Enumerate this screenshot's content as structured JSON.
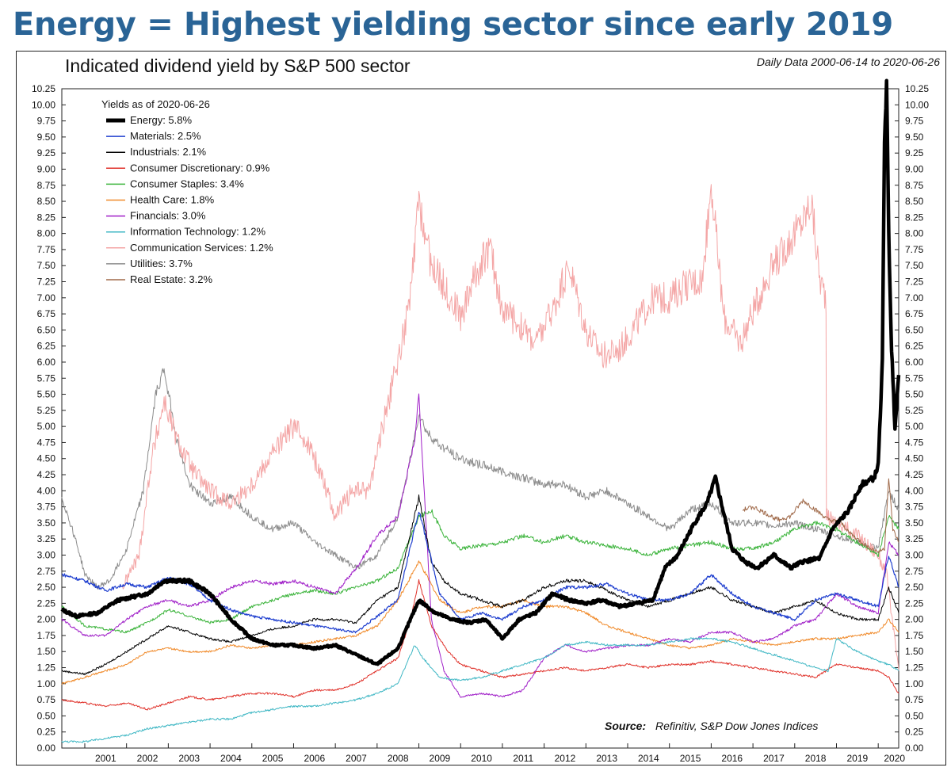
{
  "header": {
    "headline": "Energy = Highest yielding sector since early 2019"
  },
  "chart_data": {
    "type": "line",
    "title": "Indicated dividend yield by S&P 500 sector",
    "subtitle": "Daily Data 2000-06-14 to 2020-06-26",
    "xlabel": "",
    "ylabel": "",
    "xlim": [
      2000.45,
      2020.49
    ],
    "ylim": [
      0,
      10.25
    ],
    "y_ticks": [
      0.0,
      0.25,
      0.5,
      0.75,
      1.0,
      1.25,
      1.5,
      1.75,
      2.0,
      2.25,
      2.5,
      2.75,
      3.0,
      3.25,
      3.5,
      3.75,
      4.0,
      4.25,
      4.5,
      4.75,
      5.0,
      5.25,
      5.5,
      5.75,
      6.0,
      6.25,
      6.5,
      6.75,
      7.0,
      7.25,
      7.5,
      7.75,
      8.0,
      8.25,
      8.5,
      8.75,
      9.0,
      9.25,
      9.5,
      9.75,
      10.0,
      10.25
    ],
    "y_tick_labels": [
      "0.00",
      "0.25",
      "0.50",
      "0.75",
      "1.00",
      "1.25",
      "1.50",
      "1.75",
      "2.00",
      "2.25",
      "2.50",
      "2.75",
      "3.00",
      "3.25",
      "3.50",
      "3.75",
      "4.00",
      "4.25",
      "4.50",
      "4.75",
      "5.00",
      "5.25",
      "5.50",
      "5.75",
      "6.00",
      "6.25",
      "6.50",
      "6.75",
      "7.00",
      "7.25",
      "7.50",
      "7.75",
      "8.00",
      "8.25",
      "8.50",
      "8.75",
      "9.00",
      "9.25",
      "9.50",
      "9.75",
      "10.00",
      "10.25"
    ],
    "x_tick_labels": [
      "2001",
      "2002",
      "2003",
      "2004",
      "2005",
      "2006",
      "2007",
      "2008",
      "2009",
      "2010",
      "2011",
      "2012",
      "2013",
      "2014",
      "2015",
      "2016",
      "2017",
      "2018",
      "2019",
      "2020"
    ],
    "grid": false,
    "legend": {
      "title": "Yields as of 2020-06-26",
      "placement": "top-left"
    },
    "source_label": "Source:",
    "source_text": "Refinitiv, S&P Dow Jones Indices",
    "series": [
      {
        "name": "Energy: 5.8%",
        "color": "#000000",
        "width": 4.5,
        "legend_width": 5,
        "x": [
          2000.45,
          2000.8,
          2001.3,
          2001.8,
          2002.5,
          2002.9,
          2003.5,
          2004.0,
          2004.5,
          2005.0,
          2005.5,
          2006.0,
          2006.5,
          2007.0,
          2007.5,
          2008.0,
          2008.5,
          2008.8,
          2009.0,
          2009.4,
          2009.8,
          2010.2,
          2010.6,
          2011.0,
          2011.4,
          2011.8,
          2012.2,
          2012.6,
          2013.0,
          2013.4,
          2013.8,
          2014.2,
          2014.6,
          2014.9,
          2015.2,
          2015.6,
          2015.9,
          2016.1,
          2016.5,
          2016.8,
          2017.1,
          2017.5,
          2017.9,
          2018.2,
          2018.6,
          2018.9,
          2019.3,
          2019.6,
          2019.9,
          2020.0,
          2020.1,
          2020.15,
          2020.2,
          2020.25,
          2020.32,
          2020.4,
          2020.49
        ],
        "y": [
          2.15,
          2.05,
          2.1,
          2.3,
          2.4,
          2.6,
          2.6,
          2.4,
          2.0,
          1.7,
          1.6,
          1.6,
          1.55,
          1.6,
          1.45,
          1.3,
          1.55,
          2.0,
          2.3,
          2.1,
          2.0,
          1.95,
          2.0,
          1.7,
          2.0,
          2.1,
          2.4,
          2.3,
          2.25,
          2.3,
          2.2,
          2.25,
          2.3,
          2.8,
          3.0,
          3.5,
          3.8,
          4.2,
          3.1,
          2.9,
          2.8,
          3.0,
          2.8,
          2.9,
          2.95,
          3.4,
          3.7,
          4.1,
          4.2,
          4.4,
          6.0,
          9.5,
          10.3,
          8.0,
          6.2,
          5.0,
          5.8
        ]
      },
      {
        "name": "Materials: 2.5%",
        "color": "#1f3fcf",
        "width": 1.2,
        "legend_width": 1.5,
        "x": [
          2000.45,
          2001.0,
          2001.5,
          2002.0,
          2002.5,
          2003.0,
          2003.5,
          2004.0,
          2004.5,
          2005.0,
          2005.5,
          2006.0,
          2006.5,
          2007.0,
          2007.5,
          2008.0,
          2008.5,
          2009.0,
          2009.5,
          2010.0,
          2010.5,
          2011.0,
          2011.5,
          2012.0,
          2012.5,
          2013.0,
          2013.5,
          2014.0,
          2014.5,
          2015.0,
          2015.5,
          2016.0,
          2016.5,
          2017.0,
          2017.5,
          2018.0,
          2018.5,
          2019.0,
          2019.5,
          2020.0,
          2020.25,
          2020.49
        ],
        "y": [
          2.7,
          2.6,
          2.45,
          2.55,
          2.5,
          2.65,
          2.55,
          2.3,
          2.15,
          2.05,
          2.0,
          1.95,
          1.9,
          1.85,
          1.8,
          2.05,
          2.3,
          3.7,
          2.4,
          2.0,
          2.1,
          2.0,
          2.2,
          2.3,
          2.5,
          2.5,
          2.55,
          2.4,
          2.3,
          2.3,
          2.4,
          2.7,
          2.4,
          2.2,
          2.1,
          2.0,
          2.3,
          2.4,
          2.3,
          2.2,
          3.0,
          2.5
        ]
      },
      {
        "name": "Industrials: 2.1%",
        "color": "#000000",
        "width": 1.0,
        "legend_width": 1.5,
        "x": [
          2000.45,
          2001.0,
          2001.5,
          2002.0,
          2002.5,
          2003.0,
          2003.5,
          2004.0,
          2004.5,
          2005.0,
          2005.5,
          2006.0,
          2006.5,
          2007.0,
          2007.5,
          2008.0,
          2008.5,
          2009.0,
          2009.3,
          2009.6,
          2010.0,
          2010.5,
          2011.0,
          2011.5,
          2012.0,
          2012.5,
          2013.0,
          2013.5,
          2014.0,
          2014.5,
          2015.0,
          2015.5,
          2016.0,
          2016.5,
          2017.0,
          2017.5,
          2018.0,
          2018.5,
          2019.0,
          2019.5,
          2020.0,
          2020.25,
          2020.49
        ],
        "y": [
          1.2,
          1.15,
          1.3,
          1.5,
          1.7,
          1.9,
          1.8,
          1.7,
          1.65,
          1.75,
          1.85,
          1.9,
          2.0,
          2.0,
          1.95,
          2.3,
          2.5,
          3.9,
          2.9,
          2.6,
          2.4,
          2.3,
          2.2,
          2.3,
          2.5,
          2.6,
          2.6,
          2.45,
          2.3,
          2.2,
          2.3,
          2.4,
          2.5,
          2.3,
          2.2,
          2.1,
          2.2,
          2.3,
          2.1,
          2.0,
          2.0,
          2.5,
          2.1
        ]
      },
      {
        "name": "Consumer Discretionary: 0.9%",
        "color": "#e0322b",
        "width": 1.0,
        "legend_width": 1.5,
        "x": [
          2000.45,
          2001.0,
          2001.5,
          2002.0,
          2002.5,
          2003.0,
          2003.5,
          2004.0,
          2004.5,
          2005.0,
          2005.5,
          2006.0,
          2006.5,
          2007.0,
          2007.5,
          2008.0,
          2008.5,
          2008.8,
          2009.0,
          2009.3,
          2009.7,
          2010.0,
          2010.5,
          2011.0,
          2011.5,
          2012.0,
          2012.5,
          2013.0,
          2013.5,
          2014.0,
          2014.5,
          2015.0,
          2015.5,
          2016.0,
          2016.5,
          2017.0,
          2017.5,
          2018.0,
          2018.5,
          2019.0,
          2019.5,
          2020.0,
          2020.25,
          2020.49
        ],
        "y": [
          0.75,
          0.7,
          0.65,
          0.7,
          0.6,
          0.7,
          0.8,
          0.75,
          0.8,
          0.85,
          0.85,
          0.8,
          0.9,
          0.9,
          1.0,
          1.2,
          1.4,
          2.0,
          2.6,
          1.9,
          1.5,
          1.3,
          1.2,
          1.1,
          1.15,
          1.2,
          1.25,
          1.2,
          1.25,
          1.3,
          1.25,
          1.3,
          1.3,
          1.35,
          1.3,
          1.25,
          1.2,
          1.15,
          1.1,
          1.3,
          1.25,
          1.2,
          1.1,
          0.85
        ]
      },
      {
        "name": "Consumer Staples: 3.4%",
        "color": "#3cb43c",
        "width": 1.0,
        "legend_width": 1.5,
        "x": [
          2000.45,
          2001.0,
          2001.5,
          2002.0,
          2002.5,
          2003.0,
          2003.5,
          2004.0,
          2004.5,
          2005.0,
          2005.5,
          2006.0,
          2006.5,
          2007.0,
          2007.5,
          2008.0,
          2008.5,
          2009.0,
          2009.3,
          2009.6,
          2010.0,
          2010.5,
          2011.0,
          2011.5,
          2012.0,
          2012.5,
          2013.0,
          2013.5,
          2014.0,
          2014.5,
          2015.0,
          2015.5,
          2016.0,
          2016.5,
          2017.0,
          2017.5,
          2018.0,
          2018.5,
          2019.0,
          2019.5,
          2020.0,
          2020.25,
          2020.49
        ],
        "y": [
          2.2,
          1.9,
          1.85,
          1.8,
          1.95,
          2.15,
          2.05,
          1.95,
          2.0,
          2.2,
          2.3,
          2.4,
          2.45,
          2.4,
          2.5,
          2.6,
          2.8,
          3.6,
          3.7,
          3.3,
          3.1,
          3.15,
          3.2,
          3.3,
          3.2,
          3.3,
          3.2,
          3.15,
          3.1,
          3.0,
          3.1,
          3.15,
          3.2,
          3.1,
          3.1,
          3.2,
          3.4,
          3.5,
          3.4,
          3.2,
          3.0,
          3.6,
          3.4
        ]
      },
      {
        "name": "Health Care: 1.8%",
        "color": "#f08a2a",
        "width": 1.0,
        "legend_width": 1.5,
        "x": [
          2000.45,
          2001.0,
          2001.5,
          2002.0,
          2002.5,
          2003.0,
          2003.5,
          2004.0,
          2004.5,
          2005.0,
          2005.5,
          2006.0,
          2006.5,
          2007.0,
          2007.5,
          2008.0,
          2008.5,
          2009.0,
          2009.5,
          2010.0,
          2010.5,
          2011.0,
          2011.5,
          2012.0,
          2012.5,
          2013.0,
          2013.5,
          2014.0,
          2014.5,
          2015.0,
          2015.5,
          2016.0,
          2016.5,
          2017.0,
          2017.5,
          2018.0,
          2018.5,
          2019.0,
          2019.5,
          2020.0,
          2020.25,
          2020.49
        ],
        "y": [
          1.0,
          1.1,
          1.2,
          1.3,
          1.5,
          1.55,
          1.5,
          1.5,
          1.6,
          1.55,
          1.6,
          1.6,
          1.65,
          1.7,
          1.75,
          1.9,
          2.3,
          2.9,
          2.3,
          2.1,
          2.2,
          2.2,
          2.3,
          2.2,
          2.2,
          2.1,
          1.9,
          1.8,
          1.7,
          1.6,
          1.55,
          1.6,
          1.7,
          1.65,
          1.6,
          1.65,
          1.7,
          1.7,
          1.75,
          1.8,
          2.0,
          1.8
        ]
      },
      {
        "name": "Financials: 3.0%",
        "color": "#a020c8",
        "width": 1.0,
        "legend_width": 1.5,
        "x": [
          2000.45,
          2001.0,
          2001.5,
          2002.0,
          2002.5,
          2003.0,
          2003.5,
          2004.0,
          2004.5,
          2005.0,
          2005.5,
          2006.0,
          2006.5,
          2007.0,
          2007.5,
          2008.0,
          2008.5,
          2008.9,
          2009.0,
          2009.3,
          2009.6,
          2010.0,
          2010.5,
          2011.0,
          2011.5,
          2012.0,
          2012.5,
          2013.0,
          2013.5,
          2014.0,
          2014.5,
          2015.0,
          2015.5,
          2016.0,
          2016.5,
          2017.0,
          2017.5,
          2018.0,
          2018.5,
          2019.0,
          2019.5,
          2020.0,
          2020.25,
          2020.49
        ],
        "y": [
          2.0,
          1.75,
          1.75,
          2.0,
          2.2,
          2.3,
          2.2,
          2.3,
          2.5,
          2.6,
          2.55,
          2.6,
          2.5,
          2.4,
          2.8,
          3.3,
          3.6,
          4.8,
          5.5,
          2.0,
          1.2,
          0.8,
          0.85,
          0.8,
          0.9,
          1.4,
          1.6,
          1.5,
          1.55,
          1.6,
          1.6,
          1.7,
          1.65,
          1.8,
          1.8,
          1.65,
          1.7,
          1.9,
          2.0,
          2.4,
          2.2,
          2.1,
          3.2,
          3.0
        ]
      },
      {
        "name": "Information Technology: 1.2%",
        "color": "#3fb7c4",
        "width": 1.0,
        "legend_width": 1.5,
        "x": [
          2000.45,
          2001.0,
          2001.5,
          2002.0,
          2002.5,
          2003.0,
          2003.5,
          2004.0,
          2004.5,
          2005.0,
          2005.5,
          2006.0,
          2006.5,
          2007.0,
          2007.5,
          2008.0,
          2008.5,
          2008.9,
          2009.1,
          2009.5,
          2010.0,
          2010.5,
          2011.0,
          2011.5,
          2012.0,
          2012.5,
          2013.0,
          2013.5,
          2014.0,
          2014.5,
          2015.0,
          2015.5,
          2016.0,
          2016.5,
          2017.0,
          2017.5,
          2018.0,
          2018.5,
          2018.8,
          2019.0,
          2019.5,
          2020.0,
          2020.25,
          2020.49
        ],
        "y": [
          0.1,
          0.1,
          0.15,
          0.2,
          0.3,
          0.35,
          0.4,
          0.45,
          0.45,
          0.55,
          0.6,
          0.65,
          0.65,
          0.7,
          0.75,
          0.85,
          1.0,
          1.6,
          1.4,
          1.1,
          1.05,
          1.1,
          1.2,
          1.3,
          1.4,
          1.6,
          1.65,
          1.6,
          1.6,
          1.6,
          1.65,
          1.7,
          1.7,
          1.65,
          1.55,
          1.45,
          1.35,
          1.25,
          1.2,
          1.7,
          1.5,
          1.35,
          1.3,
          1.2
        ]
      },
      {
        "name": "Communication Services: 1.2%",
        "color": "#f4a6a6",
        "width": 1.0,
        "legend_width": 1.5,
        "x": [
          2001.9,
          2002.3,
          2002.6,
          2002.9,
          2003.2,
          2003.6,
          2004.0,
          2004.5,
          2005.0,
          2005.5,
          2006.0,
          2006.3,
          2006.7,
          2007.0,
          2007.4,
          2007.8,
          2008.2,
          2008.5,
          2008.8,
          2009.0,
          2009.3,
          2009.6,
          2010.0,
          2010.3,
          2010.7,
          2011.0,
          2011.4,
          2011.8,
          2012.2,
          2012.6,
          2013.0,
          2013.4,
          2013.8,
          2014.2,
          2014.6,
          2015.0,
          2015.4,
          2015.8,
          2016.0,
          2016.3,
          2016.7,
          2017.0,
          2017.4,
          2017.8,
          2018.2,
          2018.4,
          2018.6,
          2018.75,
          2018.76,
          2019.0,
          2019.5,
          2020.0,
          2020.2,
          2020.49
        ],
        "y": [
          2.5,
          3.0,
          4.5,
          5.4,
          4.8,
          4.3,
          4.0,
          3.8,
          4.1,
          4.6,
          5.0,
          4.8,
          4.2,
          3.6,
          4.0,
          4.0,
          5.2,
          6.0,
          7.0,
          8.5,
          7.5,
          7.2,
          6.7,
          7.3,
          7.8,
          6.8,
          6.6,
          6.3,
          6.8,
          7.5,
          6.5,
          6.1,
          6.2,
          6.6,
          7.0,
          7.0,
          7.2,
          7.3,
          8.8,
          6.7,
          6.3,
          6.8,
          7.4,
          7.8,
          8.2,
          8.5,
          7.3,
          7.0,
          3.6,
          3.5,
          3.3,
          3.0,
          2.7,
          1.2
        ]
      },
      {
        "name": "Utilities: 3.7%",
        "color": "#8c8c8c",
        "width": 1.0,
        "legend_width": 1.5,
        "x": [
          2000.45,
          2000.8,
          2001.0,
          2001.3,
          2001.6,
          2002.0,
          2002.4,
          2002.7,
          2002.9,
          2003.2,
          2003.5,
          2004.0,
          2004.5,
          2005.0,
          2005.5,
          2006.0,
          2006.5,
          2007.0,
          2007.5,
          2008.0,
          2008.5,
          2008.8,
          2009.0,
          2009.2,
          2009.5,
          2010.0,
          2010.5,
          2011.0,
          2011.5,
          2012.0,
          2012.5,
          2013.0,
          2013.5,
          2014.0,
          2014.5,
          2015.0,
          2015.5,
          2016.0,
          2016.5,
          2017.0,
          2017.5,
          2018.0,
          2018.5,
          2019.0,
          2019.5,
          2020.0,
          2020.25,
          2020.49
        ],
        "y": [
          3.9,
          3.2,
          2.7,
          2.5,
          2.6,
          3.1,
          4.0,
          5.5,
          5.9,
          4.8,
          4.1,
          3.8,
          3.9,
          3.6,
          3.4,
          3.5,
          3.2,
          3.0,
          2.8,
          3.0,
          3.6,
          4.5,
          5.2,
          4.9,
          4.7,
          4.5,
          4.4,
          4.3,
          4.2,
          4.1,
          4.1,
          3.9,
          4.0,
          3.8,
          3.6,
          3.4,
          3.7,
          3.8,
          3.5,
          3.5,
          3.45,
          3.5,
          3.4,
          3.3,
          3.2,
          3.1,
          4.0,
          3.7
        ]
      },
      {
        "name": "Real Estate: 3.2%",
        "color": "#a06a4a",
        "width": 1.0,
        "legend_width": 1.5,
        "x": [
          2016.75,
          2017.0,
          2017.3,
          2017.6,
          2017.9,
          2018.2,
          2018.5,
          2018.8,
          2019.1,
          2019.4,
          2019.7,
          2020.0,
          2020.15,
          2020.25,
          2020.35,
          2020.49
        ],
        "y": [
          3.7,
          3.75,
          3.65,
          3.55,
          3.6,
          3.85,
          3.7,
          3.55,
          3.5,
          3.3,
          3.15,
          3.05,
          3.1,
          4.2,
          3.4,
          3.2
        ]
      }
    ]
  }
}
